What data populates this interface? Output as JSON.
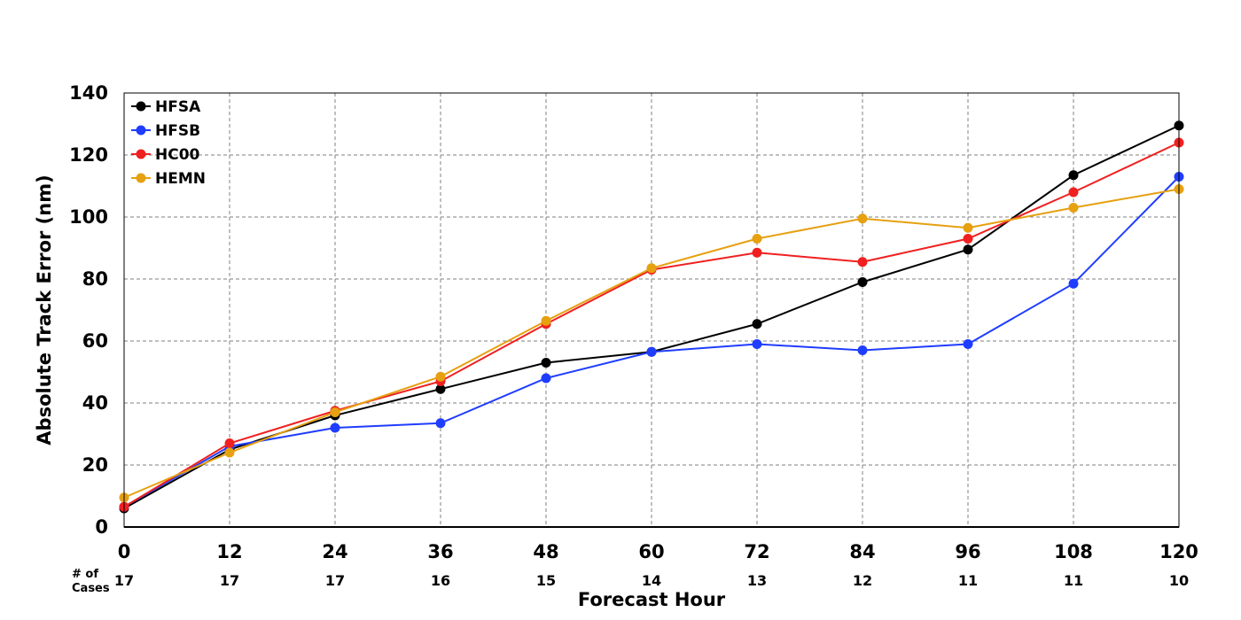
{
  "chart_data": {
    "type": "line",
    "xlabel": "Forecast Hour",
    "ylabel": "Absolute Track Error (nm)",
    "xlim": [
      0,
      120
    ],
    "ylim": [
      0,
      140
    ],
    "x": [
      0,
      12,
      24,
      36,
      48,
      60,
      72,
      84,
      96,
      108,
      120
    ],
    "x_ticks": [
      "0",
      "12",
      "24",
      "36",
      "48",
      "60",
      "72",
      "84",
      "96",
      "108",
      "120"
    ],
    "y_ticks": [
      "0",
      "20",
      "40",
      "60",
      "80",
      "100",
      "120",
      "140"
    ],
    "grid": true,
    "legend_position": "top-left",
    "cases_label_line1": "# of",
    "cases_label_line2": "Cases",
    "cases": [
      "17",
      "17",
      "17",
      "16",
      "15",
      "14",
      "13",
      "12",
      "11",
      "11",
      "10"
    ],
    "series": [
      {
        "name": "HFSA",
        "color": "#000000",
        "values": [
          6,
          25,
          36,
          44.5,
          53,
          56.5,
          65.5,
          79,
          89.5,
          113.5,
          129.5
        ]
      },
      {
        "name": "HFSB",
        "color": "#1f3dff",
        "values": [
          6.5,
          26,
          32,
          33.5,
          48,
          56.5,
          59,
          57,
          59,
          78.5,
          113
        ]
      },
      {
        "name": "HC00",
        "color": "#f02020",
        "values": [
          6.5,
          27,
          37.5,
          47,
          65.5,
          83,
          88.5,
          85.5,
          93,
          108,
          124
        ]
      },
      {
        "name": "HEMN",
        "color": "#e6a010",
        "values": [
          9.5,
          24,
          37,
          48.5,
          66.5,
          83.5,
          93,
          99.5,
          96.5,
          103,
          109
        ]
      }
    ]
  }
}
